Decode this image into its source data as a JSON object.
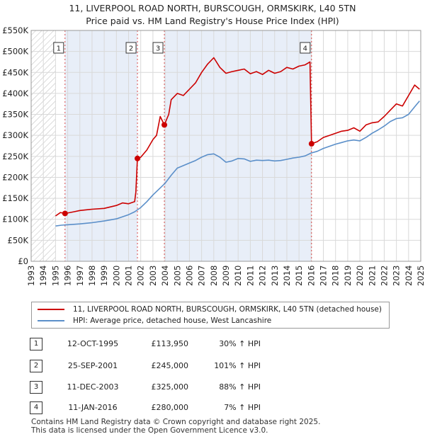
{
  "title_line1": "11, LIVERPOOL ROAD NORTH, BURSCOUGH, ORMSKIRK, L40 5TN",
  "title_line2": "Price paid vs. HM Land Registry's House Price Index (HPI)",
  "chart_data": {
    "type": "line",
    "xlim": [
      1993,
      2025
    ],
    "ylim": [
      0,
      550000
    ],
    "yticks": [
      0,
      50000,
      100000,
      150000,
      200000,
      250000,
      300000,
      350000,
      400000,
      450000,
      500000,
      550000
    ],
    "ytick_labels": [
      "£0",
      "£50K",
      "£100K",
      "£150K",
      "£200K",
      "£250K",
      "£300K",
      "£350K",
      "£400K",
      "£450K",
      "£500K",
      "£550K"
    ],
    "xticks": [
      1993,
      1994,
      1995,
      1996,
      1997,
      1998,
      1999,
      2000,
      2001,
      2002,
      2003,
      2004,
      2005,
      2006,
      2007,
      2008,
      2009,
      2010,
      2011,
      2012,
      2013,
      2014,
      2015,
      2016,
      2017,
      2018,
      2019,
      2020,
      2021,
      2022,
      2023,
      2024,
      2025
    ],
    "hatched_ranges": [
      [
        1993,
        1995
      ],
      [
        2025,
        2025.3
      ]
    ],
    "shaded_ranges": [
      [
        1995.78,
        2001.73
      ],
      [
        2003.94,
        2016.03
      ]
    ],
    "series": [
      {
        "name": "11, LIVERPOOL ROAD NORTH, BURSCOUGH, ORMSKIRK, L40 5TN (detached house)",
        "color": "#cc0000",
        "x": [
          1995.0,
          1995.4,
          1995.78,
          1996.5,
          1997.0,
          1998.0,
          1999.0,
          2000.0,
          2000.5,
          2001.0,
          2001.5,
          2001.6,
          2001.73,
          2002.0,
          2002.5,
          2003.0,
          2003.3,
          2003.6,
          2003.94,
          2004.3,
          2004.5,
          2005.0,
          2005.5,
          2006.0,
          2006.5,
          2007.0,
          2007.5,
          2008.0,
          2008.5,
          2009.0,
          2009.5,
          2010.0,
          2010.5,
          2011.0,
          2011.5,
          2012.0,
          2012.5,
          2013.0,
          2013.5,
          2014.0,
          2014.5,
          2015.0,
          2015.5,
          2015.9,
          2016.03,
          2016.5,
          2017.0,
          2017.5,
          2018.0,
          2018.5,
          2019.0,
          2019.5,
          2020.0,
          2020.5,
          2021.0,
          2021.5,
          2022.0,
          2022.5,
          2023.0,
          2023.5,
          2024.0,
          2024.5,
          2024.9
        ],
        "y": [
          108000,
          116000,
          113950,
          118000,
          121000,
          124000,
          126000,
          133000,
          139000,
          137000,
          142000,
          165000,
          245000,
          248000,
          265000,
          290000,
          300000,
          345000,
          325000,
          350000,
          385000,
          400000,
          395000,
          410000,
          425000,
          450000,
          470000,
          485000,
          462000,
          448000,
          452000,
          455000,
          458000,
          447000,
          452000,
          445000,
          455000,
          448000,
          452000,
          462000,
          458000,
          465000,
          468000,
          475000,
          280000,
          285000,
          295000,
          300000,
          305000,
          310000,
          312000,
          318000,
          310000,
          325000,
          330000,
          332000,
          345000,
          360000,
          375000,
          370000,
          395000,
          420000,
          410000
        ]
      },
      {
        "name": "HPI: Average price, detached house, West Lancashire",
        "color": "#5b8fc9",
        "x": [
          1995.0,
          1995.5,
          1996.0,
          1997.0,
          1998.0,
          1999.0,
          2000.0,
          2001.0,
          2001.5,
          2002.0,
          2002.5,
          2003.0,
          2003.5,
          2004.0,
          2004.5,
          2005.0,
          2005.5,
          2006.0,
          2006.5,
          2007.0,
          2007.5,
          2008.0,
          2008.5,
          2009.0,
          2009.5,
          2010.0,
          2010.5,
          2011.0,
          2011.5,
          2012.0,
          2012.5,
          2013.0,
          2013.5,
          2014.0,
          2014.5,
          2015.0,
          2015.5,
          2016.0,
          2016.5,
          2017.0,
          2017.5,
          2018.0,
          2018.5,
          2019.0,
          2019.5,
          2020.0,
          2020.5,
          2021.0,
          2021.5,
          2022.0,
          2022.5,
          2023.0,
          2023.5,
          2024.0,
          2024.5,
          2024.9
        ],
        "y": [
          84000,
          86000,
          87000,
          89000,
          92000,
          96000,
          101000,
          111000,
          118000,
          128000,
          142000,
          158000,
          172000,
          186000,
          205000,
          222000,
          228000,
          234000,
          240000,
          248000,
          254000,
          256000,
          248000,
          236000,
          239000,
          245000,
          244000,
          238000,
          241000,
          240000,
          241000,
          239000,
          240000,
          243000,
          246000,
          248000,
          251000,
          258000,
          262000,
          269000,
          274000,
          279000,
          283000,
          287000,
          289000,
          287000,
          295000,
          305000,
          313000,
          322000,
          333000,
          340000,
          342000,
          350000,
          368000,
          382000
        ]
      }
    ],
    "sales": [
      {
        "label": "1",
        "x": 1995.78,
        "y": 113950
      },
      {
        "label": "2",
        "x": 2001.73,
        "y": 245000
      },
      {
        "label": "3",
        "x": 2003.94,
        "y": 325000
      },
      {
        "label": "4",
        "x": 2016.03,
        "y": 280000
      }
    ]
  },
  "legend": {
    "property": "11, LIVERPOOL ROAD NORTH, BURSCOUGH, ORMSKIRK, L40 5TN (detached house)",
    "hpi": "HPI: Average price, detached house, West Lancashire",
    "property_color": "#cc0000",
    "hpi_color": "#5b8fc9"
  },
  "transactions": [
    {
      "num": "1",
      "date": "12-OCT-1995",
      "price": "£113,950",
      "hpi": "30% ↑ HPI"
    },
    {
      "num": "2",
      "date": "25-SEP-2001",
      "price": "£245,000",
      "hpi": "101% ↑ HPI"
    },
    {
      "num": "3",
      "date": "11-DEC-2003",
      "price": "£325,000",
      "hpi": "88% ↑ HPI"
    },
    {
      "num": "4",
      "date": "11-JAN-2016",
      "price": "£280,000",
      "hpi": "7% ↑ HPI"
    }
  ],
  "footer": {
    "line1": "Contains HM Land Registry data © Crown copyright and database right 2025.",
    "line2": "This data is licensed under the Open Government Licence v3.0."
  }
}
